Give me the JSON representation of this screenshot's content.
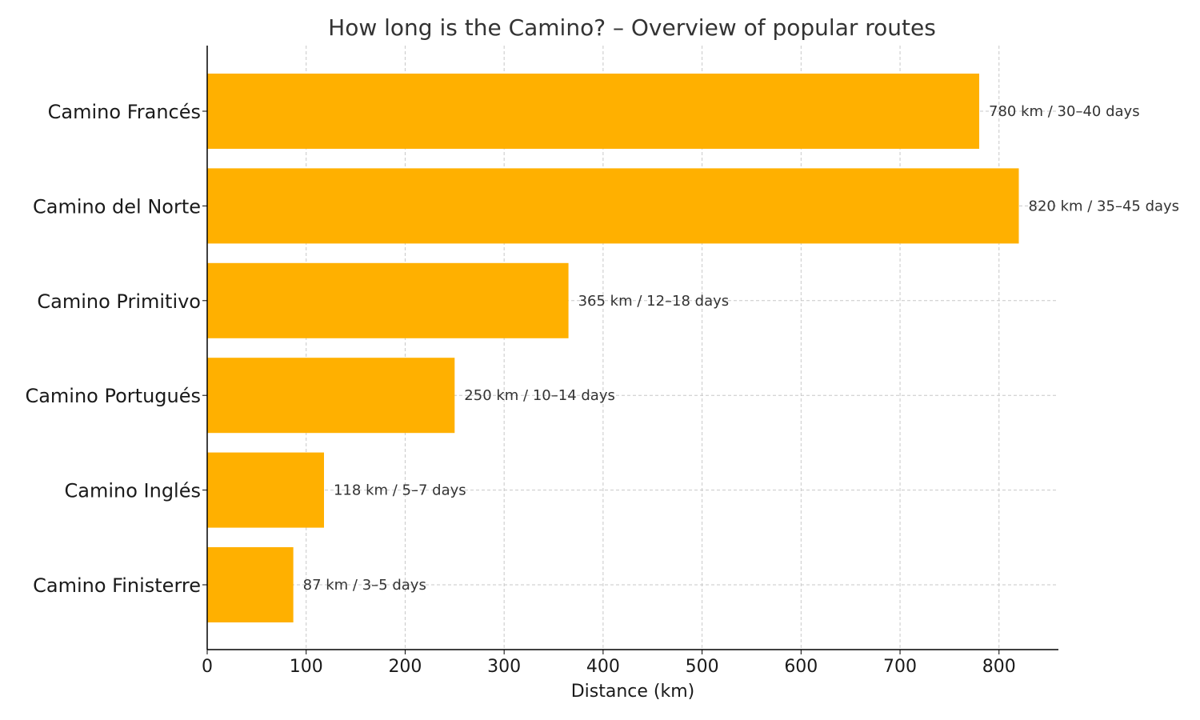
{
  "chart_data": {
    "type": "bar",
    "orientation": "horizontal",
    "title": "How long is the Camino? – Overview of popular routes",
    "xlabel": "Distance (km)",
    "ylabel": "",
    "categories": [
      "Camino Francés",
      "Camino del Norte",
      "Camino Primitivo",
      "Camino Portugués",
      "Camino Inglés",
      "Camino Finisterre"
    ],
    "values": [
      780,
      820,
      365,
      250,
      118,
      87
    ],
    "data_labels": [
      "780 km / 30–40 days",
      "820 km / 35–45 days",
      "365 km / 12–18 days",
      "250 km / 10–14 days",
      "118 km / 5–7 days",
      "87 km / 3–5 days"
    ],
    "xlim": [
      0,
      860
    ],
    "xticks": [
      0,
      100,
      200,
      300,
      400,
      500,
      600,
      700,
      800
    ],
    "grid": true,
    "bar_color": "#ffb000"
  }
}
